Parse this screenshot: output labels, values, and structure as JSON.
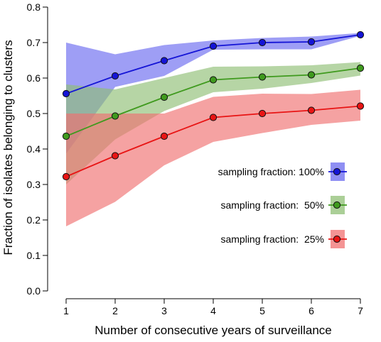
{
  "chart_data": {
    "type": "line",
    "xlabel": "Number of consecutive years of surveillance",
    "ylabel": "Fraction of isolates belonging to clusters",
    "xlim": [
      1,
      7
    ],
    "ylim": [
      0,
      0.8
    ],
    "x_ticks": [
      "1",
      "2",
      "3",
      "4",
      "5",
      "6",
      "7"
    ],
    "y_ticks": [
      "0.0",
      "0.1",
      "0.2",
      "0.3",
      "0.4",
      "0.5",
      "0.6",
      "0.7",
      "0.8"
    ],
    "grid": false,
    "legend_placement": "right",
    "x": [
      1,
      2,
      3,
      4,
      5,
      6,
      7
    ],
    "series": [
      {
        "name": "sampling fraction: 100%",
        "values": [
          0.556,
          0.606,
          0.649,
          0.69,
          0.7,
          0.702,
          0.722
        ],
        "lower": [
          0.387,
          0.575,
          0.606,
          0.68,
          0.681,
          0.681,
          0.719
        ],
        "upper": [
          0.7,
          0.667,
          0.693,
          0.706,
          0.713,
          0.717,
          0.727
        ],
        "line_color": "#1414d6",
        "band_color": "#6a6aef"
      },
      {
        "name": "sampling fraction:  50%",
        "values": [
          0.436,
          0.493,
          0.546,
          0.595,
          0.603,
          0.609,
          0.628
        ],
        "lower": [
          0.3,
          0.427,
          0.507,
          0.56,
          0.57,
          0.586,
          0.607
        ],
        "upper": [
          0.582,
          0.568,
          0.6,
          0.632,
          0.633,
          0.636,
          0.645
        ],
        "line_color": "#3f9a1e",
        "band_color": "#8fbf74"
      },
      {
        "name": "sampling fraction:  25%",
        "values": [
          0.322,
          0.381,
          0.436,
          0.489,
          0.5,
          0.509,
          0.521
        ],
        "lower": [
          0.182,
          0.251,
          0.354,
          0.42,
          0.445,
          0.468,
          0.48
        ],
        "upper": [
          0.5,
          0.5,
          0.5,
          0.547,
          0.556,
          0.555,
          0.567
        ],
        "line_color": "#e81414",
        "band_color": "#f07070"
      }
    ]
  }
}
